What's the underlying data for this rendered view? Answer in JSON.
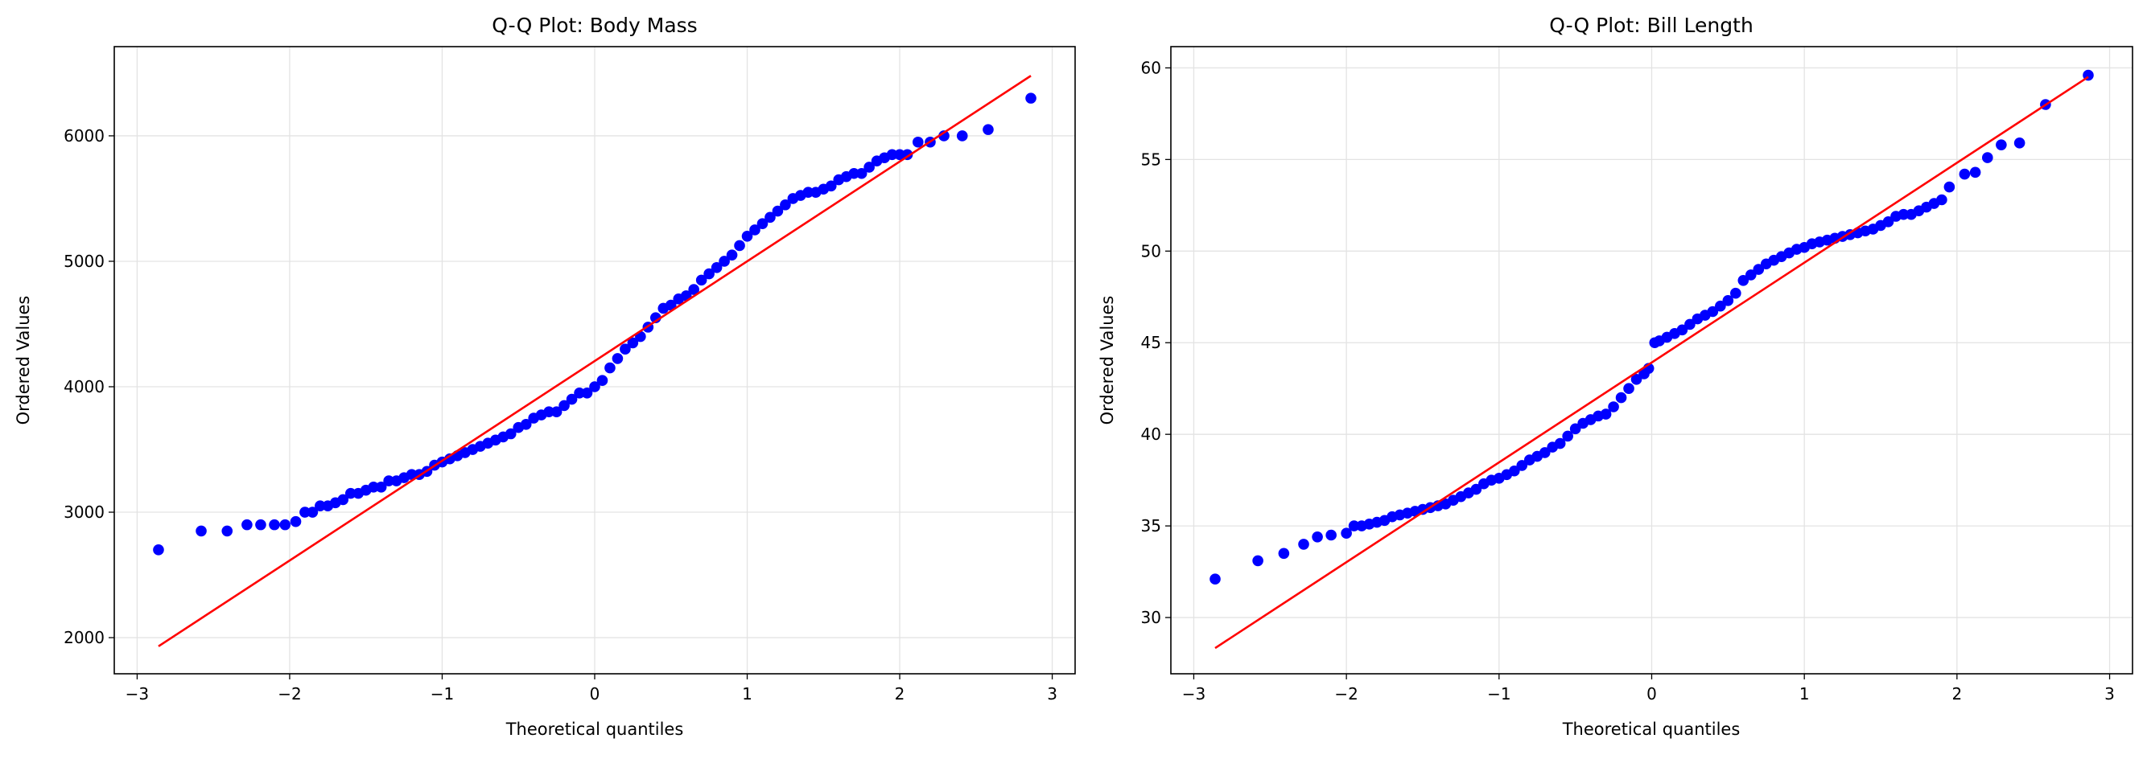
{
  "chart_data": [
    {
      "type": "scatter",
      "title": "Q-Q Plot: Body Mass",
      "xlabel": "Theoretical quantiles",
      "ylabel": "Ordered Values",
      "xlim": [
        -3.15,
        3.15
      ],
      "ylim": [
        1712,
        6711
      ],
      "xticks": [
        -3,
        -2,
        -1,
        0,
        1,
        2,
        3
      ],
      "xtick_labels": [
        "−3",
        "−2",
        "−1",
        "0",
        "1",
        "2",
        "3"
      ],
      "yticks": [
        2000,
        3000,
        4000,
        5000,
        6000
      ],
      "ytick_labels": [
        "2000",
        "3000",
        "4000",
        "5000",
        "6000"
      ],
      "grid": true,
      "point_color": "#0000ff",
      "line_color": "#ff0000",
      "fit_line": {
        "slope": 795,
        "intercept": 4205,
        "x_range": [
          -2.86,
          2.86
        ]
      },
      "x": [
        -2.86,
        -2.58,
        -2.41,
        -2.28,
        -2.19,
        -2.1,
        -2.03,
        -1.96,
        -1.9,
        -1.85,
        -1.8,
        -1.75,
        -1.7,
        -1.65,
        -1.6,
        -1.55,
        -1.5,
        -1.45,
        -1.4,
        -1.35,
        -1.3,
        -1.25,
        -1.2,
        -1.15,
        -1.1,
        -1.05,
        -1.0,
        -0.95,
        -0.9,
        -0.85,
        -0.8,
        -0.75,
        -0.7,
        -0.65,
        -0.6,
        -0.55,
        -0.5,
        -0.45,
        -0.4,
        -0.35,
        -0.3,
        -0.25,
        -0.2,
        -0.15,
        -0.1,
        -0.05,
        0,
        0.05,
        0.1,
        0.15,
        0.2,
        0.25,
        0.3,
        0.35,
        0.4,
        0.45,
        0.5,
        0.55,
        0.6,
        0.65,
        0.7,
        0.75,
        0.8,
        0.85,
        0.9,
        0.95,
        1.0,
        1.05,
        1.1,
        1.15,
        1.2,
        1.25,
        1.3,
        1.35,
        1.4,
        1.45,
        1.5,
        1.55,
        1.6,
        1.65,
        1.7,
        1.75,
        1.8,
        1.85,
        1.9,
        1.95,
        2.0,
        2.05,
        2.12,
        2.2,
        2.29,
        2.41,
        2.58,
        2.86
      ],
      "y": [
        2700,
        2850,
        2850,
        2900,
        2900,
        2900,
        2900,
        2925,
        3000,
        3000,
        3050,
        3050,
        3075,
        3100,
        3150,
        3150,
        3175,
        3200,
        3200,
        3250,
        3250,
        3275,
        3300,
        3300,
        3325,
        3375,
        3400,
        3425,
        3450,
        3475,
        3500,
        3525,
        3550,
        3575,
        3600,
        3625,
        3675,
        3700,
        3750,
        3775,
        3800,
        3800,
        3850,
        3900,
        3950,
        3950,
        4000,
        4050,
        4150,
        4225,
        4300,
        4350,
        4400,
        4475,
        4550,
        4625,
        4650,
        4700,
        4725,
        4775,
        4850,
        4900,
        4950,
        5000,
        5050,
        5125,
        5200,
        5250,
        5300,
        5350,
        5400,
        5450,
        5500,
        5525,
        5550,
        5550,
        5575,
        5600,
        5650,
        5675,
        5700,
        5700,
        5750,
        5800,
        5825,
        5850,
        5850,
        5850,
        5950,
        5950,
        6000,
        6000,
        6050,
        6300
      ]
    },
    {
      "type": "scatter",
      "title": "Q-Q Plot: Bill Length",
      "xlabel": "Theoretical quantiles",
      "ylabel": "Ordered Values",
      "xlim": [
        -3.15,
        3.15
      ],
      "ylim": [
        26.93,
        61.16
      ],
      "xticks": [
        -3,
        -2,
        -1,
        0,
        1,
        2,
        3
      ],
      "xtick_labels": [
        "−3",
        "−2",
        "−1",
        "0",
        "1",
        "2",
        "3"
      ],
      "yticks": [
        30,
        35,
        40,
        45,
        50,
        55,
        60
      ],
      "ytick_labels": [
        "30",
        "35",
        "40",
        "45",
        "50",
        "55",
        "60"
      ],
      "grid": true,
      "point_color": "#0000ff",
      "line_color": "#ff0000",
      "fit_line": {
        "slope": 5.45,
        "intercept": 43.92,
        "x_range": [
          -2.86,
          2.86
        ]
      },
      "x": [
        -2.86,
        -2.58,
        -2.41,
        -2.28,
        -2.19,
        -2.1,
        -2.0,
        -1.95,
        -1.9,
        -1.85,
        -1.8,
        -1.75,
        -1.7,
        -1.65,
        -1.6,
        -1.55,
        -1.5,
        -1.45,
        -1.4,
        -1.35,
        -1.3,
        -1.25,
        -1.2,
        -1.15,
        -1.1,
        -1.05,
        -1.0,
        -0.95,
        -0.9,
        -0.85,
        -0.8,
        -0.75,
        -0.7,
        -0.65,
        -0.6,
        -0.55,
        -0.5,
        -0.45,
        -0.4,
        -0.35,
        -0.3,
        -0.25,
        -0.2,
        -0.15,
        -0.1,
        -0.05,
        -0.02,
        0.02,
        0.05,
        0.1,
        0.15,
        0.2,
        0.25,
        0.3,
        0.35,
        0.4,
        0.45,
        0.5,
        0.55,
        0.6,
        0.65,
        0.7,
        0.75,
        0.8,
        0.85,
        0.9,
        0.95,
        1.0,
        1.05,
        1.1,
        1.15,
        1.2,
        1.25,
        1.3,
        1.35,
        1.4,
        1.45,
        1.5,
        1.55,
        1.6,
        1.65,
        1.7,
        1.75,
        1.8,
        1.85,
        1.9,
        1.95,
        2.05,
        2.12,
        2.2,
        2.29,
        2.41,
        2.58,
        2.86
      ],
      "y": [
        32.1,
        33.1,
        33.5,
        34.0,
        34.4,
        34.5,
        34.6,
        35.0,
        35.0,
        35.1,
        35.2,
        35.3,
        35.5,
        35.6,
        35.7,
        35.8,
        35.9,
        36.0,
        36.1,
        36.2,
        36.4,
        36.6,
        36.8,
        37.0,
        37.3,
        37.5,
        37.6,
        37.8,
        38.0,
        38.3,
        38.6,
        38.8,
        39.0,
        39.3,
        39.5,
        39.9,
        40.3,
        40.6,
        40.8,
        41.0,
        41.1,
        41.5,
        42.0,
        42.5,
        43.0,
        43.3,
        43.6,
        45.0,
        45.1,
        45.3,
        45.5,
        45.7,
        46.0,
        46.3,
        46.5,
        46.7,
        47.0,
        47.3,
        47.7,
        48.4,
        48.7,
        49.0,
        49.3,
        49.5,
        49.7,
        49.9,
        50.1,
        50.2,
        50.4,
        50.5,
        50.6,
        50.7,
        50.8,
        50.9,
        51.0,
        51.1,
        51.2,
        51.4,
        51.6,
        51.9,
        52.0,
        52.0,
        52.2,
        52.4,
        52.6,
        52.8,
        53.5,
        54.2,
        54.3,
        55.1,
        55.8,
        55.9,
        58.0,
        59.6
      ]
    }
  ]
}
